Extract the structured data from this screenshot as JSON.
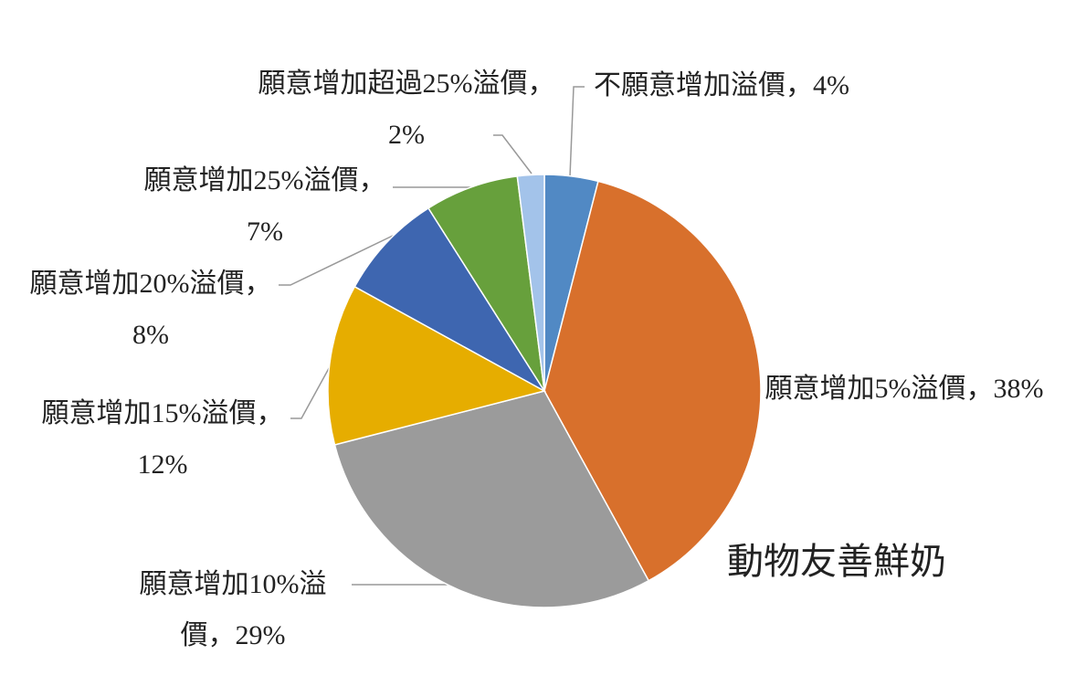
{
  "chart_data": {
    "type": "pie",
    "title": "動物友善鮮奶",
    "categories": [
      "不願意增加溢價",
      "願意增加5%溢價",
      "願意增加10%溢價",
      "願意增加15%溢價",
      "願意增加20%溢價",
      "願意增加25%溢價",
      "願意增加超過25%溢價"
    ],
    "label_separator": "，",
    "values": [
      4,
      38,
      29,
      12,
      8,
      7,
      2
    ],
    "value_labels": [
      "4%",
      "38%",
      "29%",
      "12%",
      "8%",
      "7%",
      "2%"
    ],
    "colors": [
      "#5189c4",
      "#d8702c",
      "#9b9b9b",
      "#e6ad00",
      "#3e66b0",
      "#67a03c",
      "#a3c3ea"
    ]
  }
}
